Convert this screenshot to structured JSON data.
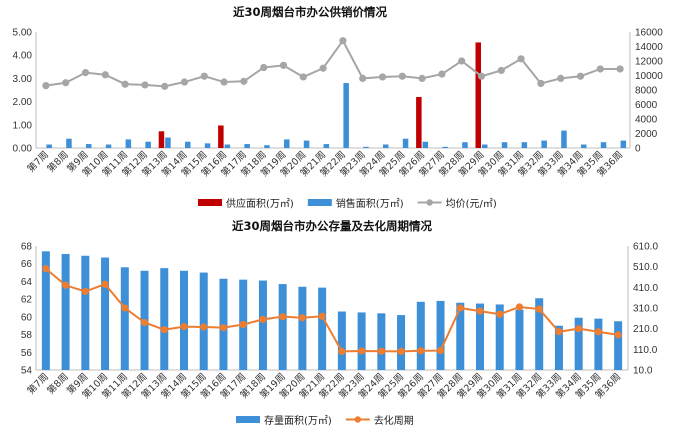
{
  "chart_data": [
    {
      "type": "bar",
      "title": "近30周烟台市办公供销价情况",
      "categories": [
        "第7周",
        "第8周",
        "第9周",
        "第10周",
        "第11周",
        "第12周",
        "第13周",
        "第14周",
        "第15周",
        "第16周",
        "第17周",
        "第18周",
        "第19周",
        "第20周",
        "第21周",
        "第22周",
        "第23周",
        "第24周",
        "第25周",
        "第26周",
        "第27周",
        "第28周",
        "第29周",
        "第30周",
        "第31周",
        "第32周",
        "第33周",
        "第34周",
        "第35周",
        "第36周"
      ],
      "ylim_left": [
        0,
        5
      ],
      "yticks_left": [
        "0.00",
        "1.00",
        "2.00",
        "3.00",
        "4.00",
        "5.00"
      ],
      "ylim_right": [
        0,
        16000
      ],
      "yticks_right": [
        "0",
        "2000",
        "4000",
        "6000",
        "8000",
        "10000",
        "12000",
        "14000",
        "16000"
      ],
      "grid": false,
      "legend_position": "bottom",
      "series": [
        {
          "name": "供应面积(万㎡)",
          "kind": "bar",
          "axis": "left",
          "color": "#c00000",
          "values": [
            0,
            0,
            0,
            0,
            0,
            0,
            0.72,
            0,
            0,
            0.97,
            0,
            0,
            0,
            0,
            0,
            0,
            0,
            0,
            0,
            2.2,
            0,
            0,
            4.55,
            0,
            0,
            0,
            0,
            0,
            0,
            0
          ]
        },
        {
          "name": "销售面积(万㎡)",
          "kind": "bar",
          "axis": "left",
          "color": "#3d8fd8",
          "values": [
            0.15,
            0.4,
            0.17,
            0.15,
            0.37,
            0.27,
            0.45,
            0.27,
            0.2,
            0.15,
            0.17,
            0.12,
            0.37,
            0.32,
            0.17,
            2.8,
            0.05,
            0.15,
            0.4,
            0.27,
            0.05,
            0.25,
            0.15,
            0.25,
            0.25,
            0.32,
            0.75,
            0.15,
            0.25,
            0.32
          ]
        },
        {
          "name": "均价(元/㎡)",
          "kind": "line",
          "axis": "right",
          "color": "#a6a6a6",
          "values": [
            8600,
            9000,
            10400,
            10100,
            8800,
            8700,
            8500,
            9100,
            9900,
            9100,
            9200,
            11100,
            11400,
            9800,
            11000,
            14800,
            9600,
            9800,
            9900,
            9600,
            10200,
            12000,
            9900,
            10700,
            12300,
            8900,
            9600,
            9900,
            10900,
            10900
          ]
        }
      ]
    },
    {
      "type": "bar",
      "title": "近30周烟台市办公存量及去化周期情况",
      "categories": [
        "第7周",
        "第8周",
        "第9周",
        "第10周",
        "第11周",
        "第12周",
        "第13周",
        "第14周",
        "第15周",
        "第16周",
        "第17周",
        "第18周",
        "第19周",
        "第20周",
        "第21周",
        "第22周",
        "第23周",
        "第24周",
        "第25周",
        "第26周",
        "第27周",
        "第28周",
        "第29周",
        "第30周",
        "第31周",
        "第32周",
        "第33周",
        "第34周",
        "第35周",
        "第36周"
      ],
      "ylim_left": [
        54,
        68
      ],
      "yticks_left": [
        "54",
        "56",
        "58",
        "60",
        "62",
        "64",
        "66",
        "68"
      ],
      "ylim_right": [
        10,
        610
      ],
      "yticks_right": [
        "10.0",
        "110.0",
        "210.0",
        "310.0",
        "410.0",
        "510.0",
        "610.0"
      ],
      "grid": false,
      "legend_position": "bottom",
      "series": [
        {
          "name": "存量面积(万㎡)",
          "kind": "bar",
          "axis": "left",
          "color": "#3d8fd8",
          "values": [
            67.4,
            67.1,
            66.9,
            66.7,
            65.6,
            65.2,
            65.5,
            65.2,
            65.0,
            64.3,
            64.2,
            64.1,
            63.7,
            63.4,
            63.3,
            60.6,
            60.5,
            60.4,
            60.2,
            61.7,
            61.8,
            61.6,
            61.5,
            61.4,
            60.8,
            62.1,
            59.0,
            59.9,
            59.8,
            59.5
          ]
        },
        {
          "name": "去化周期",
          "kind": "line",
          "axis": "right",
          "color": "#ed7d31",
          "values": [
            500,
            420,
            390,
            425,
            310,
            240,
            205,
            220,
            218,
            215,
            230,
            255,
            268,
            263,
            270,
            100,
            102,
            101,
            100,
            103,
            104,
            310,
            295,
            280,
            315,
            305,
            195,
            210,
            195,
            180
          ]
        }
      ]
    }
  ]
}
